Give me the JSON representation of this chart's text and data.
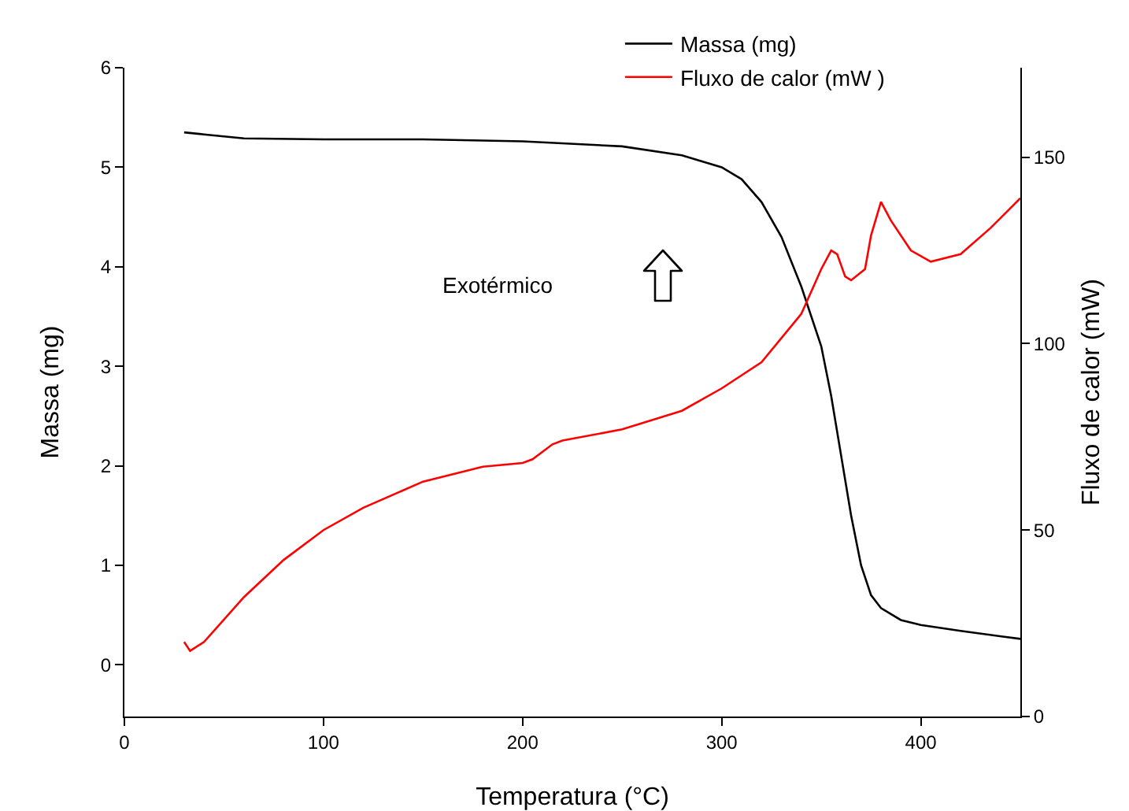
{
  "chart_data": {
    "type": "line",
    "xlabel": "Temperatura (°C)",
    "ylabel": "Massa (mg)",
    "y2label": "Fluxo de calor (mW)",
    "xlim": [
      0,
      450
    ],
    "xticks": [
      0,
      100,
      200,
      300,
      400
    ],
    "ylim": [
      -0.52,
      6
    ],
    "yticks": [
      0,
      1,
      2,
      3,
      4,
      5,
      6
    ],
    "y2lim": [
      0,
      174
    ],
    "y2ticks": [
      0,
      50,
      100,
      150
    ],
    "legend": "top right",
    "grid": false,
    "annotations": [
      "Exotérmico"
    ],
    "series": [
      {
        "name": "Massa (mg)",
        "color": "#000000",
        "x": [
          30,
          40,
          60,
          100,
          150,
          200,
          250,
          280,
          300,
          310,
          320,
          330,
          340,
          350,
          355,
          360,
          365,
          370,
          375,
          380,
          390,
          400,
          420,
          450
        ],
        "values": [
          5.35,
          5.33,
          5.29,
          5.28,
          5.28,
          5.26,
          5.21,
          5.12,
          5.0,
          4.88,
          4.65,
          4.3,
          3.8,
          3.2,
          2.7,
          2.1,
          1.5,
          1.0,
          0.7,
          0.57,
          0.45,
          0.4,
          0.34,
          0.26
        ]
      },
      {
        "name": "Fluxo de calor (mW )",
        "color": "#ff0000",
        "axis": "y2",
        "x": [
          30,
          33,
          40,
          60,
          80,
          100,
          120,
          150,
          180,
          200,
          205,
          215,
          220,
          250,
          280,
          300,
          320,
          340,
          350,
          355,
          358,
          362,
          365,
          372,
          375,
          380,
          385,
          395,
          405,
          420,
          435,
          450
        ],
        "values": [
          20,
          17.6,
          20,
          32,
          42,
          50,
          56,
          63,
          67,
          68,
          69,
          73,
          74,
          77,
          82,
          88,
          95,
          108,
          120,
          125,
          124,
          118,
          117,
          120,
          129,
          138,
          133,
          125,
          122,
          124,
          131,
          139
        ]
      }
    ]
  }
}
